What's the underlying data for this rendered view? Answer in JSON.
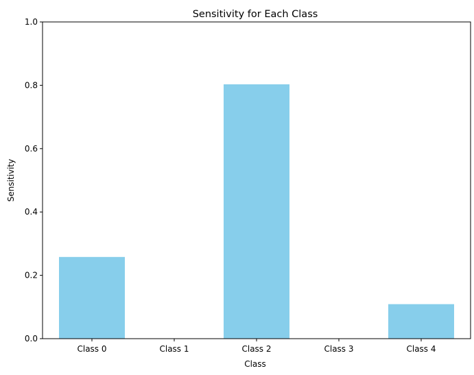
{
  "chart_data": {
    "type": "bar",
    "title": "Sensitivity for Each Class",
    "xlabel": "Class",
    "ylabel": "Sensitivity",
    "categories": [
      "Class 0",
      "Class 1",
      "Class 2",
      "Class 3",
      "Class 4"
    ],
    "values": [
      0.258,
      0.0,
      0.803,
      0.0,
      0.109
    ],
    "ylim": [
      0,
      1
    ],
    "yticks": [
      0.0,
      0.2,
      0.4,
      0.6,
      0.8,
      1.0
    ],
    "ytick_labels": [
      "0.0",
      "0.2",
      "0.4",
      "0.6",
      "0.8",
      "1.0"
    ],
    "bar_color": "#87ceeb",
    "grid": false,
    "legend": "none"
  }
}
